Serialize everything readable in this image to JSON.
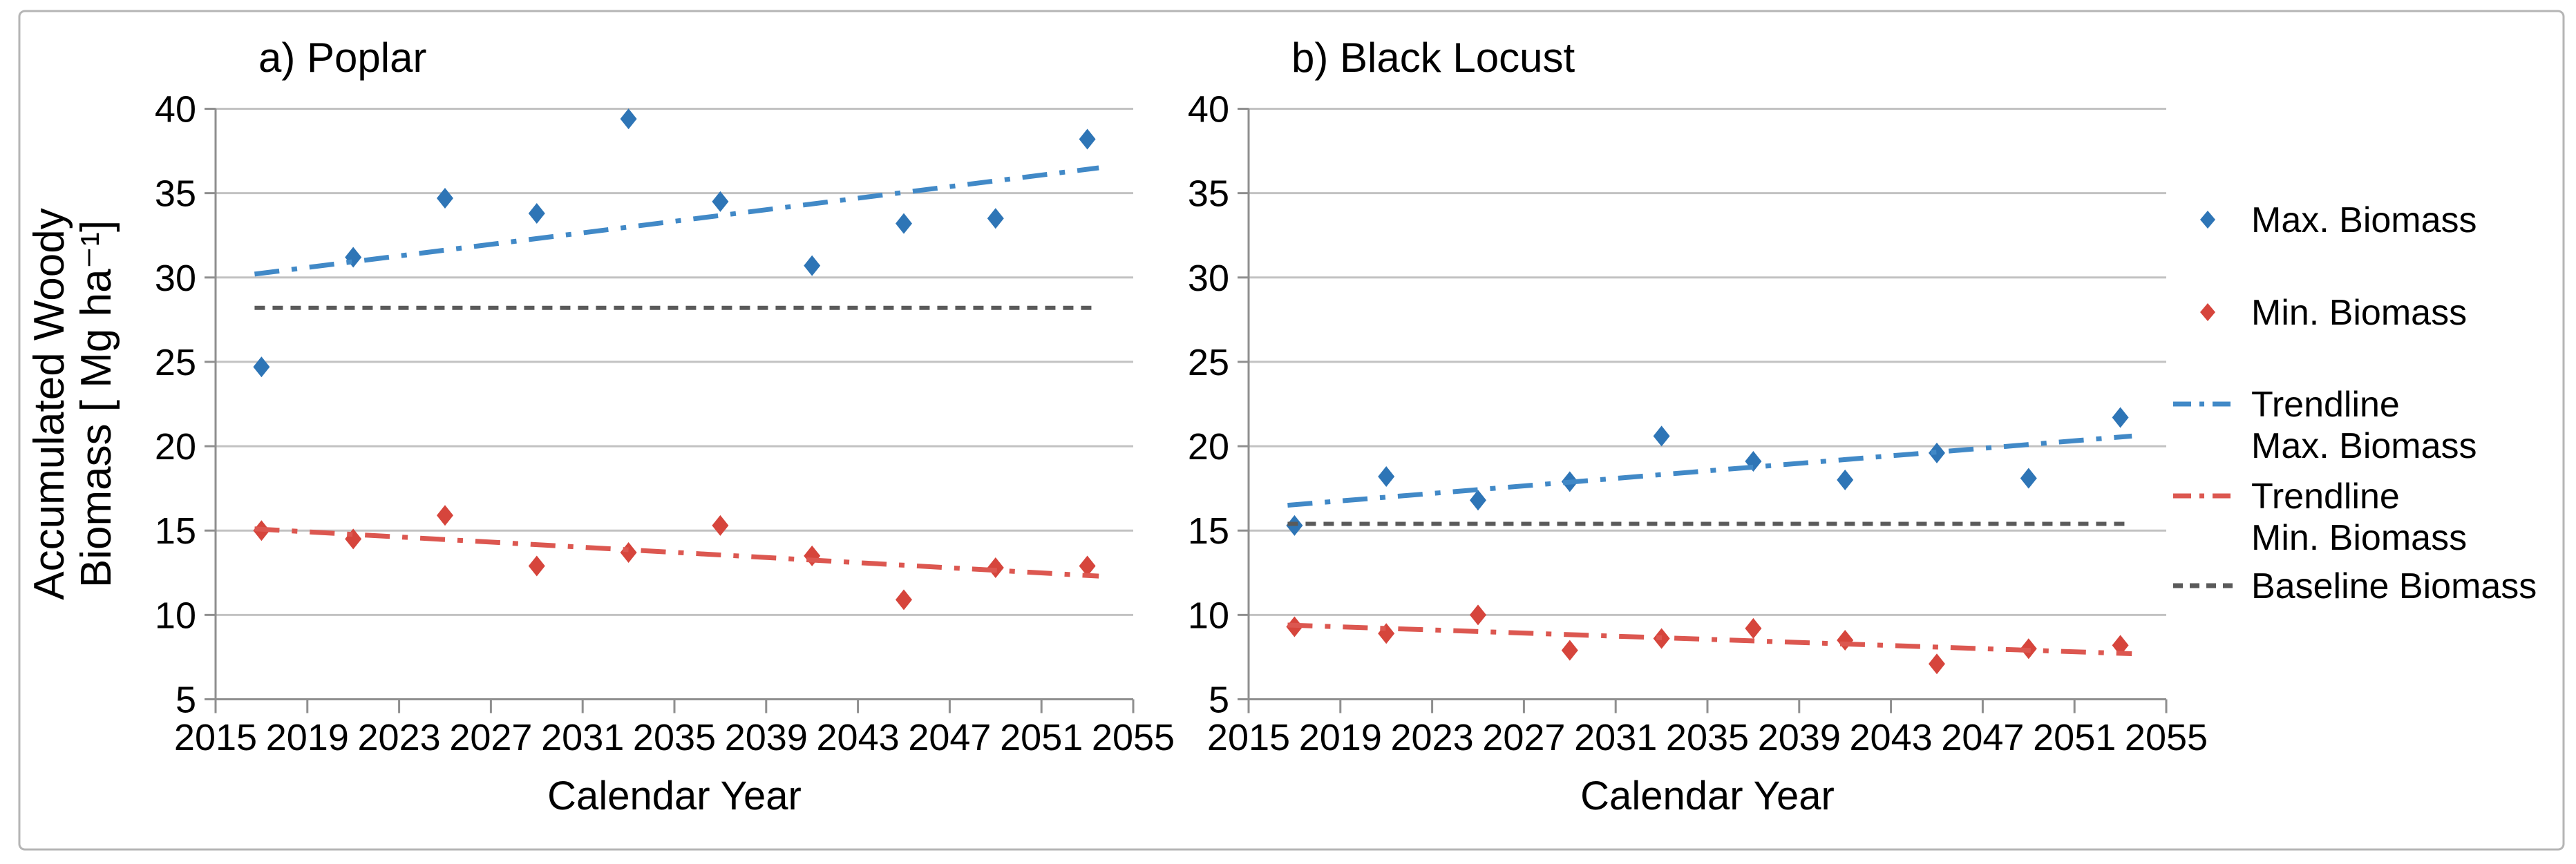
{
  "figure": {
    "x_axis_label": "Calendar Year",
    "y_axis_label_lines": [
      "Accumulated Woody",
      "Biomass [ Mg ha⁻¹]"
    ]
  },
  "colors": {
    "max": "#2e75b6",
    "min": "#d6453c",
    "trend_max": "#4189c7",
    "trend_min": "#dc5750",
    "baseline": "#5a5a5a",
    "grid": "#c2c2c2",
    "axis": "#8f8f8f",
    "border": "#b5b5b5",
    "text": "#000000"
  },
  "legend": {
    "items": [
      {
        "lines": [
          "Max. Biomass"
        ],
        "marker": "diamond",
        "color": "max"
      },
      {
        "lines": [
          "Min. Biomass"
        ],
        "marker": "diamond",
        "color": "min"
      },
      {
        "lines": [
          "Trendline",
          "Max. Biomass"
        ],
        "marker": "dashdot",
        "color": "trend_max"
      },
      {
        "lines": [
          "Trendline",
          "Min. Biomass"
        ],
        "marker": "dashdot",
        "color": "trend_min"
      },
      {
        "lines": [
          "Baseline Biomass"
        ],
        "marker": "dash",
        "color": "baseline"
      }
    ]
  },
  "chart_data": [
    {
      "type": "scatter",
      "title": "a) Poplar",
      "xlabel": "Calendar Year",
      "ylabel": "Accumulated Woody Biomass [ Mg ha⁻¹]",
      "xlim": [
        2015,
        2055
      ],
      "ylim": [
        5,
        40
      ],
      "x_ticks": [
        2015,
        2019,
        2023,
        2027,
        2031,
        2035,
        2039,
        2043,
        2047,
        2051,
        2055
      ],
      "y_ticks": [
        5,
        10,
        15,
        20,
        25,
        30,
        35,
        40
      ],
      "grid": "horizontal",
      "legend_position": "right-of-second-panel",
      "x": [
        2017,
        2021,
        2025,
        2029,
        2033,
        2037,
        2041,
        2045,
        2049,
        2053
      ],
      "series": [
        {
          "name": "Max. Biomass",
          "kind": "points",
          "color": "max",
          "values": [
            24.7,
            31.2,
            34.7,
            33.8,
            39.4,
            34.5,
            30.7,
            33.2,
            33.5,
            38.2
          ]
        },
        {
          "name": "Min. Biomass",
          "kind": "points",
          "color": "min",
          "values": [
            15.0,
            14.5,
            15.9,
            12.9,
            13.7,
            15.3,
            13.5,
            10.9,
            12.8,
            12.9
          ]
        },
        {
          "name": "Trendline Max. Biomass",
          "kind": "trendline",
          "color": "trend_max",
          "x_start": 2016.7,
          "x_end": 2053.5,
          "y_start": 30.2,
          "y_end": 36.5
        },
        {
          "name": "Trendline Min. Biomass",
          "kind": "trendline",
          "color": "trend_min",
          "x_start": 2016.7,
          "x_end": 2053.5,
          "y_start": 15.1,
          "y_end": 12.3
        },
        {
          "name": "Baseline Biomass",
          "kind": "baseline",
          "color": "baseline",
          "x_start": 2016.7,
          "x_end": 2053.5,
          "value": 28.2
        }
      ]
    },
    {
      "type": "scatter",
      "title": "b) Black Locust",
      "xlabel": "Calendar Year",
      "ylabel": "Accumulated Woody Biomass [ Mg ha⁻¹]",
      "xlim": [
        2015,
        2055
      ],
      "ylim": [
        5,
        40
      ],
      "x_ticks": [
        2015,
        2019,
        2023,
        2027,
        2031,
        2035,
        2039,
        2043,
        2047,
        2051,
        2055
      ],
      "y_ticks": [
        5,
        10,
        15,
        20,
        25,
        30,
        35,
        40
      ],
      "grid": "horizontal",
      "x": [
        2017,
        2021,
        2025,
        2029,
        2033,
        2037,
        2041,
        2045,
        2049,
        2053
      ],
      "series": [
        {
          "name": "Max. Biomass",
          "kind": "points",
          "color": "max",
          "values": [
            15.3,
            18.2,
            16.8,
            17.9,
            20.6,
            19.1,
            18.0,
            19.6,
            18.1,
            21.7
          ]
        },
        {
          "name": "Min. Biomass",
          "kind": "points",
          "color": "min",
          "values": [
            9.3,
            8.9,
            10.0,
            7.9,
            8.6,
            9.2,
            8.5,
            7.1,
            8.0,
            8.2
          ]
        },
        {
          "name": "Trendline Max. Biomass",
          "kind": "trendline",
          "color": "trend_max",
          "x_start": 2016.7,
          "x_end": 2053.5,
          "y_start": 16.5,
          "y_end": 20.6
        },
        {
          "name": "Trendline Min. Biomass",
          "kind": "trendline",
          "color": "trend_min",
          "x_start": 2016.7,
          "x_end": 2053.5,
          "y_start": 9.4,
          "y_end": 7.7
        },
        {
          "name": "Baseline Biomass",
          "kind": "baseline",
          "color": "baseline",
          "x_start": 2016.7,
          "x_end": 2053.5,
          "value": 15.4
        }
      ]
    }
  ]
}
